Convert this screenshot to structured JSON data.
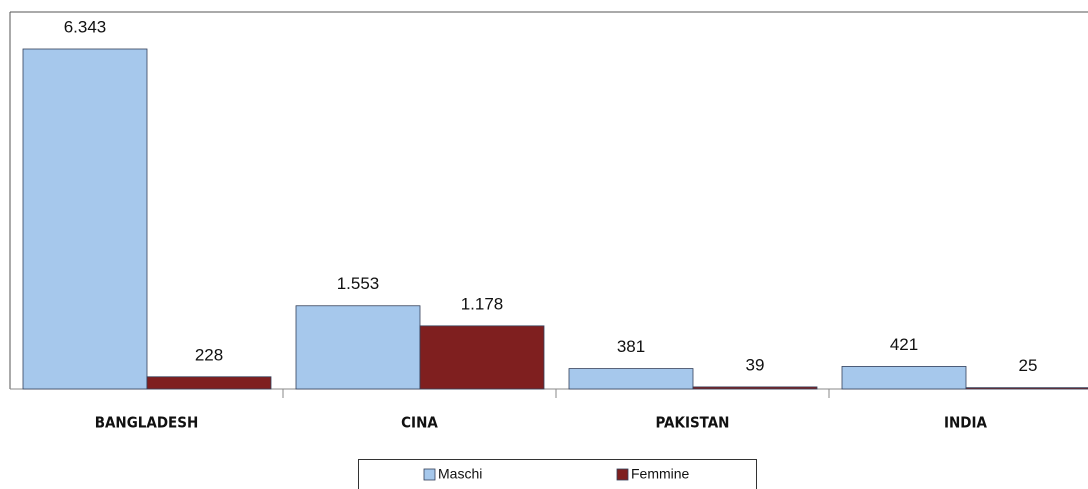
{
  "chart_data": {
    "type": "bar",
    "categories": [
      "BANGLADESH",
      "CINA",
      "PAKISTAN",
      "INDIA"
    ],
    "series": [
      {
        "name": "Maschi",
        "color": "#a6c8ec",
        "values": [
          6343,
          1553,
          381,
          421
        ],
        "value_labels": [
          "6.343",
          "1.553",
          "381",
          "421"
        ]
      },
      {
        "name": "Femmine",
        "color": "#7f1f1f",
        "values": [
          228,
          1178,
          39,
          25
        ],
        "value_labels": [
          "228",
          "1.178",
          "39",
          "25"
        ]
      }
    ]
  }
}
